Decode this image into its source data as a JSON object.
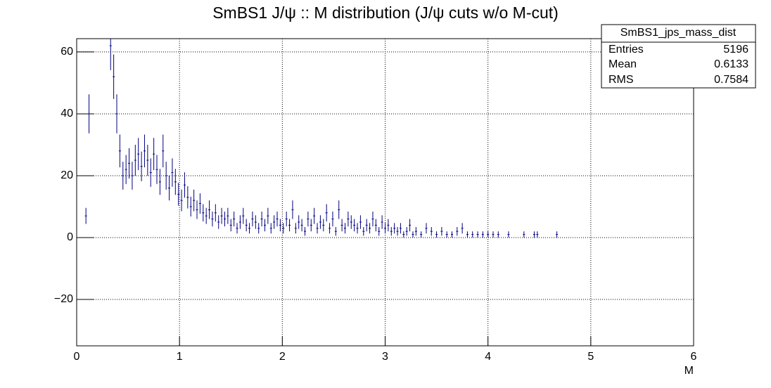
{
  "chart_data": {
    "type": "errorbar",
    "title": "SmBS1 J/ψ :: M distribution (J/ψ cuts w/o M-cut)",
    "x_label": "M",
    "color": "#000080",
    "grid": true,
    "xlim": [
      0,
      6
    ],
    "ylim": [
      -35,
      64.3
    ],
    "xticks": [
      0,
      1,
      2,
      3,
      4,
      5,
      6
    ],
    "yticks": [
      {
        "value": -20,
        "label": "−20"
      },
      0,
      20,
      40,
      60
    ],
    "x": [
      0.09,
      0.12,
      0.33,
      0.36,
      0.39,
      0.42,
      0.45,
      0.48,
      0.51,
      0.54,
      0.57,
      0.6,
      0.63,
      0.66,
      0.69,
      0.72,
      0.75,
      0.78,
      0.81,
      0.84,
      0.87,
      0.9,
      0.93,
      0.96,
      0.99,
      1.02,
      1.05,
      1.08,
      1.11,
      1.14,
      1.17,
      1.2,
      1.23,
      1.26,
      1.29,
      1.32,
      1.35,
      1.38,
      1.41,
      1.44,
      1.47,
      1.5,
      1.53,
      1.56,
      1.59,
      1.62,
      1.65,
      1.68,
      1.71,
      1.74,
      1.77,
      1.8,
      1.83,
      1.86,
      1.89,
      1.92,
      1.95,
      1.98,
      2.01,
      2.04,
      2.07,
      2.1,
      2.13,
      2.16,
      2.19,
      2.22,
      2.25,
      2.28,
      2.31,
      2.34,
      2.37,
      2.4,
      2.43,
      2.46,
      2.49,
      2.52,
      2.55,
      2.58,
      2.61,
      2.64,
      2.67,
      2.7,
      2.73,
      2.76,
      2.79,
      2.82,
      2.85,
      2.88,
      2.91,
      2.94,
      2.97,
      3.0,
      3.03,
      3.06,
      3.09,
      3.12,
      3.15,
      3.18,
      3.21,
      3.24,
      3.27,
      3.3,
      3.35,
      3.4,
      3.45,
      3.5,
      3.55,
      3.6,
      3.65,
      3.7,
      3.75,
      3.8,
      3.85,
      3.9,
      3.95,
      4.0,
      4.05,
      4.1,
      4.2,
      4.35,
      4.45,
      4.48,
      4.67
    ],
    "values": [
      7,
      40,
      62,
      52,
      40,
      28,
      20,
      22,
      24,
      20,
      25,
      27,
      23,
      28,
      25,
      21,
      27,
      22,
      18,
      28,
      20,
      16,
      21,
      18,
      14,
      12,
      17,
      13,
      10,
      12,
      9,
      11,
      8,
      7,
      9,
      6,
      8,
      5,
      7,
      6,
      7,
      4,
      6,
      3,
      5,
      7,
      4,
      3,
      6,
      5,
      3,
      6,
      4,
      7,
      3,
      5,
      6,
      4,
      3,
      6,
      4,
      9,
      3,
      5,
      4,
      2,
      6,
      4,
      7,
      3,
      5,
      4,
      8,
      3,
      6,
      2,
      9,
      4,
      3,
      6,
      5,
      4,
      3,
      5,
      2,
      4,
      3,
      6,
      4,
      2,
      5,
      3,
      4,
      2,
      3,
      2,
      3,
      1,
      2,
      4,
      1,
      2,
      1,
      3,
      2,
      1,
      2,
      1,
      1,
      2,
      3,
      1,
      1,
      1,
      1,
      1,
      1,
      1,
      1,
      1,
      1,
      1,
      1
    ],
    "errors": [
      2.6,
      6.3,
      7.9,
      7.2,
      6.3,
      5.3,
      4.5,
      4.7,
      4.9,
      4.5,
      5,
      5.2,
      4.8,
      5.3,
      5,
      4.6,
      5.2,
      4.7,
      4.2,
      5.3,
      4.5,
      4,
      4.6,
      4.2,
      3.7,
      3.5,
      4.1,
      3.6,
      3.2,
      3.5,
      3,
      3.3,
      2.8,
      2.6,
      3,
      2.4,
      2.8,
      2.2,
      2.6,
      2.4,
      2.6,
      2,
      2.4,
      1.7,
      2.2,
      2.6,
      2,
      1.7,
      2.4,
      2.2,
      1.7,
      2.4,
      2,
      2.6,
      1.7,
      2.2,
      2.4,
      2,
      1.7,
      2.4,
      2,
      3,
      1.7,
      2.2,
      2,
      1.4,
      2.4,
      2,
      2.6,
      1.7,
      2.2,
      2,
      2.8,
      1.7,
      2.4,
      1.4,
      3,
      2,
      1.7,
      2.4,
      2.2,
      2,
      1.7,
      2.2,
      1.4,
      2,
      1.7,
      2.4,
      2,
      1.4,
      2.2,
      1.7,
      2,
      1.4,
      1.7,
      1.4,
      1.7,
      1,
      1.4,
      2,
      1,
      1.4,
      1,
      1.7,
      1.4,
      1,
      1.4,
      1,
      1,
      1.4,
      1.7,
      1,
      1,
      1,
      1,
      1,
      1,
      1,
      1,
      1,
      1,
      1,
      1
    ]
  },
  "stats": {
    "title": "SmBS1_jps_mass_dist",
    "rows": [
      [
        "Entries",
        5196
      ],
      [
        "Mean",
        0.6133
      ],
      [
        "RMS",
        0.7584
      ]
    ]
  }
}
